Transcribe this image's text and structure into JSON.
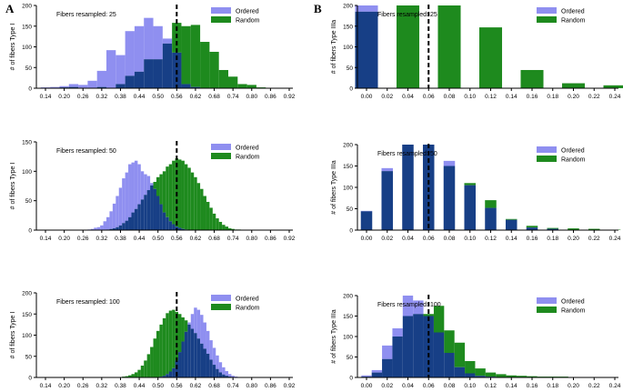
{
  "figure": {
    "label_a": "A",
    "label_b": "B"
  },
  "colors": {
    "ordered": "#8f8ff0",
    "random": "#1e8a1e",
    "overlap": "#173f86",
    "median_line": "#000000"
  },
  "chart_data": [
    {
      "id": "a1",
      "type": "bar",
      "title": "Fibers resampled: 25",
      "ylabel": "# of fibers Type I",
      "ylim": [
        0,
        200
      ],
      "yticks": [
        0,
        50,
        100,
        150,
        200
      ],
      "reference_line_x": 0.56,
      "x_tick_labels": [
        "0.14",
        "0.20",
        "0.26",
        "0.32",
        "0.38",
        "0.44",
        "0.50",
        "0.56",
        "0.62",
        "0.68",
        "0.74",
        "0.80",
        "0.86",
        "0.92"
      ],
      "bin_centers": [
        0.14,
        0.17,
        0.2,
        0.23,
        0.26,
        0.29,
        0.32,
        0.35,
        0.38,
        0.41,
        0.44,
        0.47,
        0.5,
        0.53,
        0.56,
        0.59,
        0.62,
        0.65,
        0.68,
        0.71,
        0.74,
        0.77,
        0.8,
        0.83,
        0.86,
        0.89,
        0.92
      ],
      "series": [
        {
          "name": "Ordered",
          "values": [
            2,
            3,
            5,
            10,
            8,
            18,
            42,
            92,
            80,
            138,
            150,
            170,
            150,
            120,
            86,
            10,
            3,
            0,
            0,
            0,
            0,
            0,
            0,
            0,
            0,
            0,
            0
          ]
        },
        {
          "name": "Random",
          "values": [
            0,
            0,
            2,
            3,
            0,
            0,
            3,
            0,
            10,
            30,
            40,
            70,
            70,
            108,
            158,
            150,
            153,
            112,
            88,
            44,
            28,
            10,
            8,
            2,
            0,
            0,
            0
          ]
        }
      ],
      "legend": [
        "Ordered",
        "Random"
      ]
    },
    {
      "id": "b1",
      "type": "bar",
      "title": "Fibers resampled: 25",
      "ylabel": "# of fibers Type IIIa",
      "ylim": [
        0,
        200
      ],
      "yticks": [
        0,
        50,
        100,
        150,
        200
      ],
      "reference_line_x": 0.06,
      "x_tick_labels": [
        "0.00",
        "0.02",
        "0.04",
        "0.06",
        "0.08",
        "0.10",
        "0.12",
        "0.14",
        "0.16",
        "0.18",
        "0.20",
        "0.22",
        "0.24"
      ],
      "bin_centers": [
        0.0,
        0.04,
        0.08,
        0.12,
        0.16,
        0.2,
        0.24
      ],
      "series": [
        {
          "name": "Ordered",
          "values": [
            200,
            0,
            0,
            0,
            0,
            0,
            0
          ]
        },
        {
          "name": "Random",
          "values": [
            185,
            200,
            200,
            147,
            44,
            12,
            7
          ]
        }
      ],
      "legend": [
        "Ordered",
        "Random"
      ]
    },
    {
      "id": "a2",
      "type": "bar",
      "title": "Fibers resampled: 50",
      "ylabel": "# of fibers Type I",
      "ylim": [
        0,
        150
      ],
      "yticks": [
        0,
        50,
        100,
        150
      ],
      "reference_line_x": 0.56,
      "x_tick_labels": [
        "0.14",
        "0.20",
        "0.26",
        "0.32",
        "0.38",
        "0.44",
        "0.50",
        "0.56",
        "0.62",
        "0.68",
        "0.74",
        "0.80",
        "0.86",
        "0.92"
      ],
      "bin_centers": [
        0.14,
        0.15,
        0.16,
        0.17,
        0.18,
        0.19,
        0.2,
        0.21,
        0.22,
        0.23,
        0.24,
        0.25,
        0.26,
        0.27,
        0.28,
        0.29,
        0.3,
        0.31,
        0.32,
        0.33,
        0.34,
        0.35,
        0.36,
        0.37,
        0.38,
        0.39,
        0.4,
        0.41,
        0.42,
        0.43,
        0.44,
        0.45,
        0.46,
        0.47,
        0.48,
        0.49,
        0.5,
        0.51,
        0.52,
        0.53,
        0.54,
        0.55,
        0.56,
        0.57,
        0.58,
        0.59,
        0.6,
        0.61,
        0.62,
        0.63,
        0.64,
        0.65,
        0.66,
        0.67,
        0.68,
        0.69,
        0.7,
        0.71,
        0.72,
        0.73,
        0.74,
        0.75,
        0.76,
        0.77,
        0.78,
        0.79,
        0.8
      ],
      "series": [
        {
          "name": "Ordered",
          "values": [
            0,
            0,
            0,
            0,
            0,
            0,
            0,
            0,
            0,
            0,
            0,
            0,
            0,
            0,
            1,
            2,
            4,
            5,
            8,
            15,
            22,
            32,
            45,
            58,
            72,
            88,
            98,
            112,
            115,
            118,
            112,
            100,
            95,
            92,
            80,
            70,
            58,
            44,
            30,
            22,
            15,
            10,
            6,
            4,
            2,
            1,
            0,
            0,
            0,
            0,
            0,
            0,
            0,
            0,
            0,
            0,
            0,
            0,
            0,
            0,
            0,
            0,
            0,
            0,
            0,
            0,
            0
          ]
        },
        {
          "name": "Random",
          "values": [
            0,
            0,
            0,
            0,
            0,
            0,
            0,
            0,
            0,
            0,
            0,
            0,
            0,
            0,
            0,
            0,
            0,
            0,
            0,
            0,
            1,
            2,
            3,
            5,
            8,
            12,
            16,
            22,
            30,
            36,
            44,
            52,
            60,
            68,
            76,
            82,
            90,
            95,
            100,
            108,
            112,
            118,
            122,
            120,
            118,
            112,
            106,
            98,
            90,
            80,
            70,
            58,
            48,
            38,
            28,
            20,
            14,
            9,
            6,
            3,
            2,
            1,
            1,
            0,
            0,
            0,
            0
          ]
        }
      ],
      "legend": [
        "Ordered",
        "Random"
      ]
    },
    {
      "id": "b2",
      "type": "bar",
      "title": "Fibers resampled: 50",
      "ylabel": "# of fibers Type IIIa",
      "ylim": [
        0,
        200
      ],
      "yticks": [
        0,
        50,
        100,
        150,
        200
      ],
      "reference_line_x": 0.06,
      "x_tick_labels": [
        "0.00",
        "0.02",
        "0.04",
        "0.06",
        "0.08",
        "0.10",
        "0.12",
        "0.14",
        "0.16",
        "0.18",
        "0.20",
        "0.22",
        "0.24"
      ],
      "bin_centers": [
        0.0,
        0.02,
        0.04,
        0.06,
        0.08,
        0.1,
        0.12,
        0.14,
        0.16,
        0.18,
        0.2,
        0.22,
        0.24
      ],
      "series": [
        {
          "name": "Ordered",
          "values": [
            45,
            145,
            200,
            200,
            162,
            105,
            52,
            24,
            6,
            3,
            1,
            0,
            0
          ]
        },
        {
          "name": "Random",
          "values": [
            44,
            138,
            200,
            200,
            150,
            110,
            70,
            26,
            10,
            5,
            4,
            3,
            1
          ]
        }
      ],
      "legend": [
        "Ordered",
        "Random"
      ]
    },
    {
      "id": "a3",
      "type": "bar",
      "title": "Fibers resampled: 100",
      "ylabel": "# of fibers Type I",
      "ylim": [
        0,
        200
      ],
      "yticks": [
        0,
        50,
        100,
        150,
        200
      ],
      "reference_line_x": 0.56,
      "x_tick_labels": [
        "0.14",
        "0.20",
        "0.26",
        "0.32",
        "0.38",
        "0.44",
        "0.50",
        "0.56",
        "0.62",
        "0.68",
        "0.74",
        "0.80",
        "0.86",
        "0.92"
      ],
      "bin_centers": [
        0.38,
        0.39,
        0.4,
        0.41,
        0.42,
        0.43,
        0.44,
        0.45,
        0.46,
        0.47,
        0.48,
        0.49,
        0.5,
        0.51,
        0.52,
        0.53,
        0.54,
        0.55,
        0.56,
        0.57,
        0.58,
        0.59,
        0.6,
        0.61,
        0.62,
        0.63,
        0.64,
        0.65,
        0.66,
        0.67,
        0.68,
        0.69,
        0.7,
        0.71,
        0.72,
        0.73,
        0.74,
        0.75,
        0.76
      ],
      "series": [
        {
          "name": "Ordered",
          "values": [
            0,
            0,
            0,
            0,
            0,
            0,
            0,
            0,
            0,
            0,
            0,
            0,
            1,
            2,
            4,
            8,
            14,
            22,
            40,
            60,
            85,
            108,
            130,
            150,
            165,
            160,
            148,
            130,
            110,
            88,
            70,
            52,
            36,
            24,
            15,
            8,
            4,
            2,
            0
          ]
        },
        {
          "name": "Random",
          "values": [
            1,
            2,
            3,
            5,
            8,
            12,
            18,
            28,
            40,
            55,
            72,
            92,
            110,
            125,
            140,
            152,
            158,
            160,
            155,
            150,
            142,
            135,
            125,
            115,
            105,
            92,
            80,
            68,
            56,
            42,
            30,
            20,
            12,
            7,
            4,
            2,
            1,
            0,
            0
          ]
        }
      ],
      "legend": [
        "Ordered",
        "Random"
      ]
    },
    {
      "id": "b3",
      "type": "bar",
      "title": "Fibers resampled: 100",
      "ylabel": "# of fibers Type IIIa",
      "ylim": [
        0,
        200
      ],
      "yticks": [
        0,
        50,
        100,
        150,
        200
      ],
      "reference_line_x": 0.06,
      "x_tick_labels": [
        "0.00",
        "0.02",
        "0.04",
        "0.06",
        "0.08",
        "0.10",
        "0.12",
        "0.14",
        "0.16",
        "0.18",
        "0.20",
        "0.22",
        "0.24"
      ],
      "bin_centers": [
        0.0,
        0.01,
        0.02,
        0.03,
        0.04,
        0.05,
        0.06,
        0.07,
        0.08,
        0.09,
        0.1,
        0.11,
        0.12,
        0.13,
        0.14,
        0.15,
        0.16,
        0.17,
        0.18,
        0.19,
        0.2,
        0.21,
        0.22,
        0.23,
        0.24
      ],
      "series": [
        {
          "name": "Ordered",
          "values": [
            5,
            18,
            78,
            120,
            200,
            188,
            150,
            110,
            60,
            25,
            10,
            4,
            2,
            1,
            1,
            0,
            0,
            0,
            0,
            0,
            0,
            0,
            0,
            0,
            0
          ]
        },
        {
          "name": "Random",
          "values": [
            2,
            12,
            45,
            100,
            150,
            155,
            155,
            175,
            115,
            85,
            40,
            22,
            12,
            8,
            5,
            4,
            3,
            2,
            2,
            2,
            1,
            1,
            0,
            0,
            0
          ]
        }
      ],
      "legend": [
        "Ordered",
        "Random"
      ]
    }
  ]
}
